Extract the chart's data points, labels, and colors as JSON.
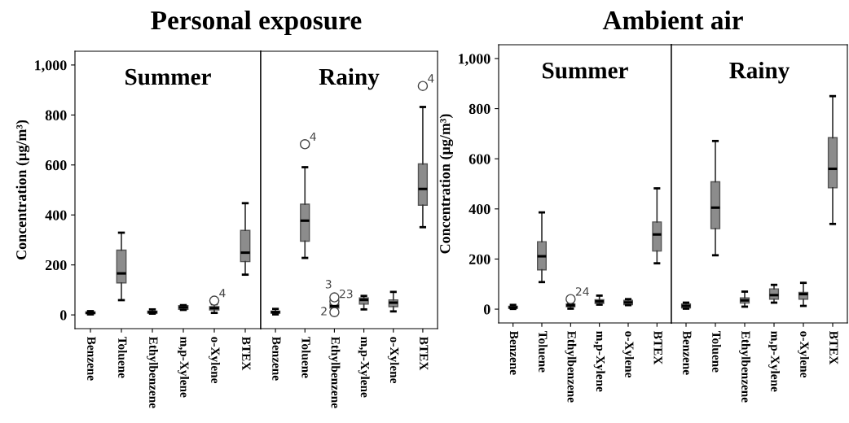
{
  "chart_data": [
    {
      "type": "box",
      "title": "Personal exposure",
      "subtitle": "Summer",
      "ylabel": "Concentration (µg/m³)",
      "categories": [
        "Benzene",
        "Toluene",
        "Ethylbenzene",
        "m,p-Xylene",
        "o-Xylene",
        "BTEX"
      ],
      "color": "#8c8c8c",
      "ylim": [
        -55,
        1055
      ],
      "yticks": [
        0,
        200,
        400,
        600,
        800,
        {
          "value": 1000,
          "label": "1,000"
        }
      ],
      "grid": false,
      "boxes": [
        {
          "low": 2,
          "q1": 5,
          "median": 8,
          "q3": 12,
          "high": 15
        },
        {
          "low": 59,
          "q1": 128,
          "median": 166,
          "q3": 259,
          "high": 329
        },
        {
          "low": 5,
          "q1": 7,
          "median": 11,
          "q3": 15,
          "high": 22
        },
        {
          "low": 20,
          "q1": 22,
          "median": 30,
          "q3": 37,
          "high": 39
        },
        {
          "low": 8,
          "q1": 20,
          "median": 27,
          "q3": 33,
          "high": 43,
          "outliers": [
            57
          ]
        },
        {
          "low": 161,
          "q1": 213,
          "median": 249,
          "q3": 338,
          "high": 447
        }
      ],
      "annotations": [
        "4"
      ]
    },
    {
      "type": "box",
      "subtitle": "Rainy",
      "categories": [
        "Benzene",
        "Toluene",
        "Ethylbenzene",
        "m,p-Xylene",
        "o-Xylene",
        "BTEX"
      ],
      "color": "#8c8c8c",
      "ylim": [
        -55,
        1055
      ],
      "tick_labels": "x",
      "grid": false,
      "boxes": [
        {
          "low": 2,
          "q1": 7,
          "median": 11,
          "q3": 15,
          "high": 24
        },
        {
          "low": 228,
          "q1": 295,
          "median": 377,
          "q3": 443,
          "high": 591,
          "outliers": [
            683
          ]
        },
        {
          "low": 22,
          "q1": 27,
          "median": 35,
          "q3": 43,
          "high": 50,
          "outliers": [
            11,
            54,
            70
          ]
        },
        {
          "low": 22,
          "q1": 43,
          "median": 60,
          "q3": 68,
          "high": 76
        },
        {
          "low": 14,
          "q1": 33,
          "median": 49,
          "q3": 60,
          "high": 92
        },
        {
          "low": 351,
          "q1": 439,
          "median": 504,
          "q3": 604,
          "high": 832,
          "outliers": [
            916
          ]
        }
      ],
      "annotations": [
        "4",
        "2",
        "23",
        "3",
        "4"
      ]
    },
    {
      "type": "box",
      "title": "Ambient air",
      "subtitle": "Summer",
      "ylabel": "Concentration (µg/m³)",
      "categories": [
        "Benzene",
        "Toluene",
        "Ethylbenzene",
        "m,p-Xylene",
        "o-Xylene",
        "BTEX"
      ],
      "color": "#8c8c8c",
      "ylim": [
        -55,
        1055
      ],
      "yticks": [
        0,
        200,
        400,
        600,
        800,
        {
          "value": 1000,
          "label": "1,000"
        }
      ],
      "grid": false,
      "boxes": [
        {
          "low": 1,
          "q1": 3,
          "median": 7,
          "q3": 12,
          "high": 17
        },
        {
          "low": 108,
          "q1": 157,
          "median": 211,
          "q3": 269,
          "high": 386
        },
        {
          "low": 2,
          "q1": 10,
          "median": 15,
          "q3": 21,
          "high": 24,
          "outliers": [
            40
          ]
        },
        {
          "low": 18,
          "q1": 23,
          "median": 31,
          "q3": 38,
          "high": 54
        },
        {
          "low": 16,
          "q1": 18,
          "median": 27,
          "q3": 35,
          "high": 40
        },
        {
          "low": 183,
          "q1": 232,
          "median": 298,
          "q3": 348,
          "high": 482
        }
      ],
      "annotations": [
        "24"
      ]
    },
    {
      "type": "box",
      "subtitle": "Rainy",
      "categories": [
        "Benzene",
        "Toluene",
        "Ethylbenzene",
        "m,p-Xylene",
        "o-Xylene",
        "BTEX"
      ],
      "color": "#8c8c8c",
      "ylim": [
        -55,
        1055
      ],
      "tick_labels": "x",
      "grid": false,
      "boxes": [
        {
          "low": 2,
          "q1": 5,
          "median": 13,
          "q3": 21,
          "high": 26
        },
        {
          "low": 215,
          "q1": 321,
          "median": 405,
          "q3": 508,
          "high": 671
        },
        {
          "low": 10,
          "q1": 24,
          "median": 35,
          "q3": 45,
          "high": 70
        },
        {
          "low": 26,
          "q1": 40,
          "median": 56,
          "q3": 81,
          "high": 97
        },
        {
          "low": 13,
          "q1": 40,
          "median": 60,
          "q3": 67,
          "high": 105
        },
        {
          "low": 340,
          "q1": 484,
          "median": 560,
          "q3": 684,
          "high": 850
        }
      ]
    }
  ]
}
